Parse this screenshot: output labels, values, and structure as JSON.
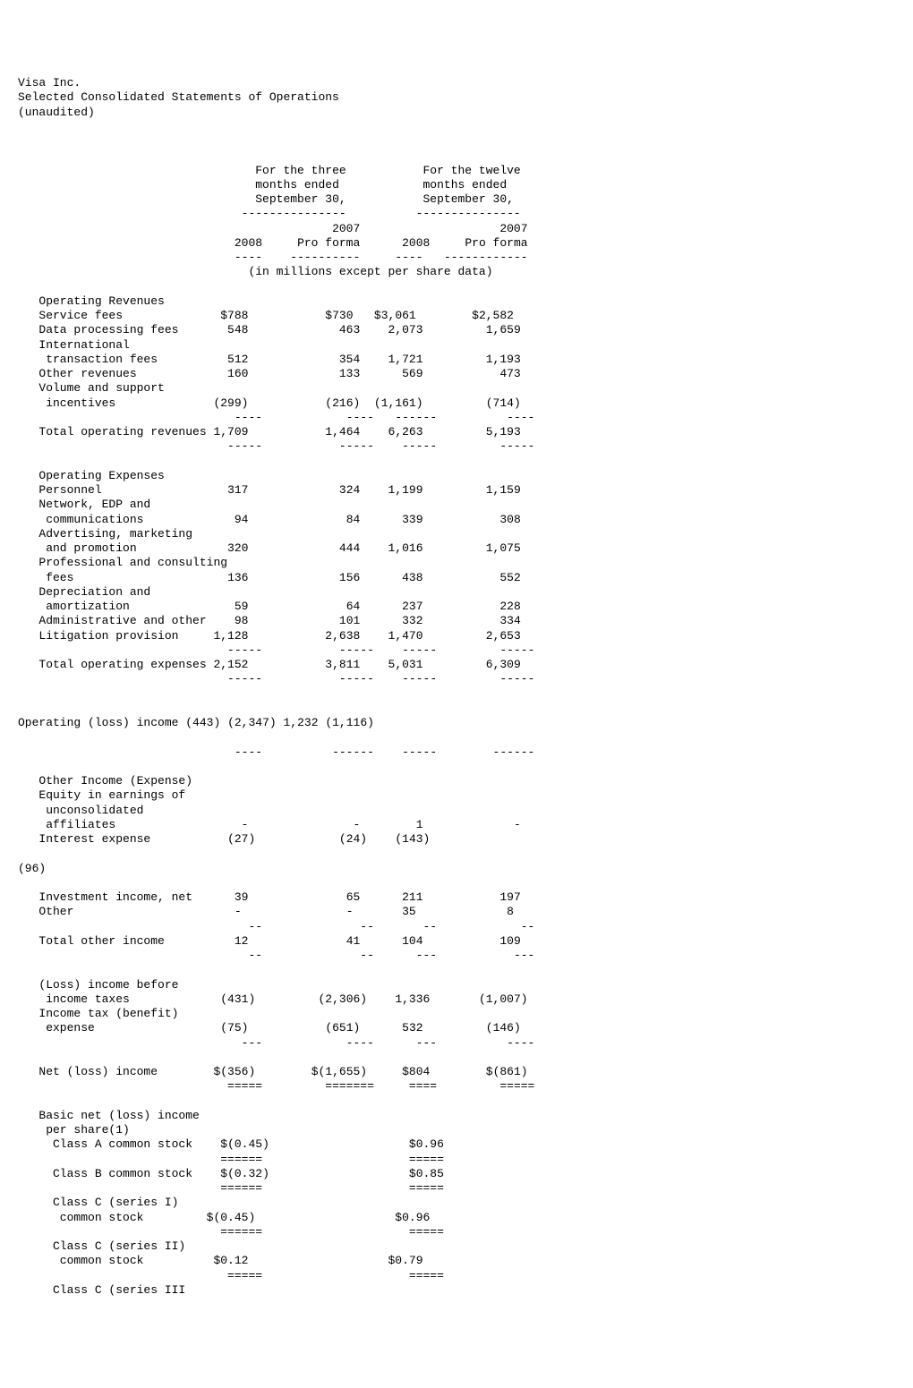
{
  "header": {
    "company": "Visa Inc.",
    "title": "Selected Consolidated Statements of Operations",
    "note": "(unaudited)"
  },
  "col_hdr": {
    "three_l1": "For the three",
    "three_l2": "months ended",
    "three_l3": "September 30,",
    "twelve_l1": "For the twelve",
    "twelve_l2": "months ended",
    "twelve_l3": "September 30,",
    "y2007": "2007",
    "y2008": "2008",
    "pro_forma": "Pro forma",
    "units": "(in millions except per share data)"
  },
  "sec": {
    "op_rev": "Operating Revenues",
    "op_exp": "Operating Expenses",
    "other_inc": "Other Income (Expense)",
    "basic_net": "Basic net (loss) income",
    "per_share": " per share(1)"
  },
  "rows": {
    "service_fees": {
      "l": "Service fees",
      "a": "$788",
      "b": "$730",
      "c": "$3,061",
      "d": "$2,582"
    },
    "data_proc": {
      "l": "Data processing fees",
      "a": "548",
      "b": "463",
      "c": "2,073",
      "d": "1,659"
    },
    "intl": {
      "l": "International"
    },
    "trans_fees": {
      "l": " transaction fees",
      "a": "512",
      "b": "354",
      "c": "1,721",
      "d": "1,193"
    },
    "other_rev": {
      "l": "Other revenues",
      "a": "160",
      "b": "133",
      "c": "569",
      "d": "473"
    },
    "vol_sup": {
      "l": "Volume and support"
    },
    "incentives": {
      "l": " incentives",
      "a": "(299)",
      "b": "(216)",
      "c": "(1,161)",
      "d": "(714)"
    },
    "tot_op_rev": {
      "l": "Total operating revenues",
      "a": "1,709",
      "b": "1,464",
      "c": "6,263",
      "d": "5,193"
    },
    "personnel": {
      "l": "Personnel",
      "a": "317",
      "b": "324",
      "c": "1,199",
      "d": "1,159"
    },
    "net_edp": {
      "l": "Network, EDP and"
    },
    "comms": {
      "l": " communications",
      "a": "94",
      "b": "84",
      "c": "339",
      "d": "308"
    },
    "adv_mkt": {
      "l": "Advertising, marketing"
    },
    "promo": {
      "l": " and promotion",
      "a": "320",
      "b": "444",
      "c": "1,016",
      "d": "1,075"
    },
    "prof_cons": {
      "l": "Professional and consulting"
    },
    "fees": {
      "l": " fees",
      "a": "136",
      "b": "156",
      "c": "438",
      "d": "552"
    },
    "depr": {
      "l": "Depreciation and"
    },
    "amort": {
      "l": " amortization",
      "a": "59",
      "b": "64",
      "c": "237",
      "d": "228"
    },
    "admin": {
      "l": "Administrative and other",
      "a": "98",
      "b": "101",
      "c": "332",
      "d": "334"
    },
    "litig": {
      "l": "Litigation provision",
      "a": "1,128",
      "b": "2,638",
      "c": "1,470",
      "d": "2,653"
    },
    "tot_op_exp": {
      "l": "Total operating expenses",
      "a": "2,152",
      "b": "3,811",
      "c": "5,031",
      "d": "6,309"
    },
    "op_loss": {
      "l": "Operating (loss) income",
      "a": "(443)",
      "b": "(2,347)",
      "c": "1,232",
      "d": "(1,116)"
    },
    "eq_earn": {
      "l": "Equity in earnings of"
    },
    "uncons": {
      "l": " unconsolidated"
    },
    "affil": {
      "l": " affiliates",
      "a": "-",
      "b": "-",
      "c": "1",
      "d": "-"
    },
    "int_exp": {
      "l": "Interest expense",
      "a": "(27)",
      "b": "(24)",
      "c": "(143)",
      "d": ""
    },
    "row96": {
      "l": "(96)"
    },
    "inv_inc": {
      "l": "Investment income, net",
      "a": "39",
      "b": "65",
      "c": "211",
      "d": "197"
    },
    "other": {
      "l": "Other",
      "a": "-",
      "b": "-",
      "c": "35",
      "d": "8"
    },
    "tot_oth": {
      "l": "Total other income",
      "a": "12",
      "b": "41",
      "c": "104",
      "d": "109"
    },
    "loss_bef": {
      "l": "(Loss) income before"
    },
    "inc_tax": {
      "l": " income taxes",
      "a": "(431)",
      "b": "(2,306)",
      "c": "1,336",
      "d": "(1,007)"
    },
    "inc_tax_ben": {
      "l": "Income tax (benefit)"
    },
    "expense": {
      "l": " expense",
      "a": "(75)",
      "b": "(651)",
      "c": "532",
      "d": "(146)"
    },
    "net_loss": {
      "l": "Net (loss) income",
      "a": "$(356)",
      "b": "$(1,655)",
      "c": "$804",
      "d": "$(861)"
    },
    "cls_a": {
      "l": "  Class A common stock",
      "a": "$(0.45)",
      "c": "$0.96"
    },
    "cls_b": {
      "l": "  Class B common stock",
      "a": "$(0.32)",
      "c": "$0.85"
    },
    "cls_c_i_l1": {
      "l": "  Class C (series I)"
    },
    "cls_c_i": {
      "l": "   common stock",
      "a": "$(0.45)",
      "c": "$0.96"
    },
    "cls_c_ii_l1": {
      "l": "  Class C (series II)"
    },
    "cls_c_ii": {
      "l": "   common stock",
      "a": "$0.12",
      "c": "$0.79"
    },
    "cls_c_iii": {
      "l": "  Class C (series III"
    }
  },
  "rules": {
    "d5": "-----",
    "d4": "----",
    "d6": "------",
    "d7": "-------",
    "d10": "----------",
    "d12": "------------",
    "d15": "---------------",
    "eq4": "====",
    "eq5": "=====",
    "eq6": "======",
    "eq7": "=======",
    "dd2": "--",
    "dd3": "---"
  }
}
